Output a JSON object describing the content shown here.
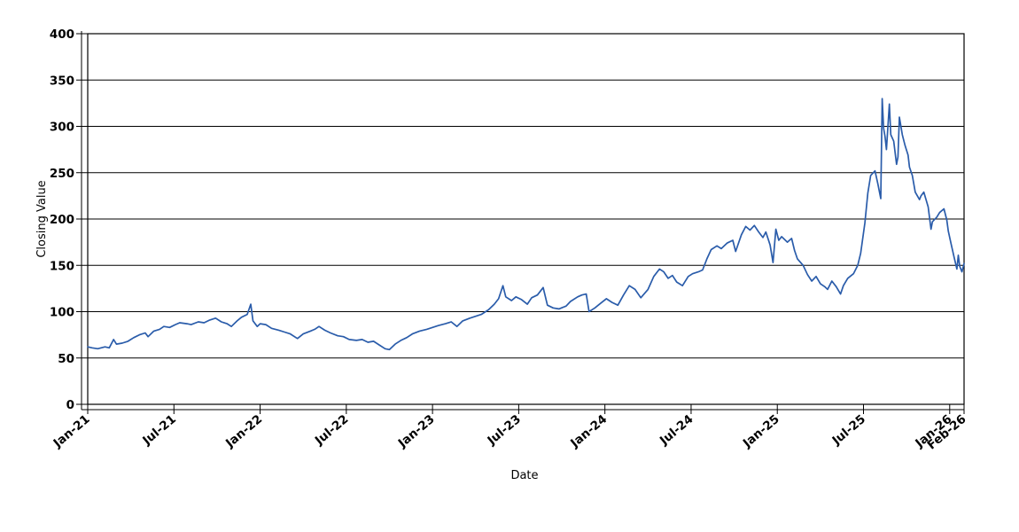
{
  "figure": {
    "kind": "time-series line chart",
    "background": "#ffffff",
    "axis_color": "#000000",
    "grid_color": "#000000"
  },
  "chart_data": {
    "type": "line",
    "title": "",
    "xlabel": "Date",
    "ylabel": "Closing Value",
    "x_unit": "months_since_2021-01 (fractional; 0 = Jan-21)",
    "xlim": [
      0,
      61
    ],
    "ylim": [
      0,
      400
    ],
    "grid": "horizontal gridlines at every 50",
    "legend": "none",
    "line_color": "#2a5caa",
    "yticks": [
      {
        "value": 0,
        "label": "0"
      },
      {
        "value": 50,
        "label": "50"
      },
      {
        "value": 100,
        "label": "100"
      },
      {
        "value": 150,
        "label": "150"
      },
      {
        "value": 200,
        "label": "200"
      },
      {
        "value": 250,
        "label": "250"
      },
      {
        "value": 300,
        "label": "300"
      },
      {
        "value": 350,
        "label": "350"
      },
      {
        "value": 400,
        "label": "400"
      }
    ],
    "xticks": [
      {
        "m": 0,
        "label": "Jan-21"
      },
      {
        "m": 6,
        "label": "Jul-21"
      },
      {
        "m": 12,
        "label": "Jan-22"
      },
      {
        "m": 18,
        "label": "Jul-22"
      },
      {
        "m": 24,
        "label": "Jan-23"
      },
      {
        "m": 30,
        "label": "Jul-23"
      },
      {
        "m": 36,
        "label": "Jan-24"
      },
      {
        "m": 42,
        "label": "Jul-24"
      },
      {
        "m": 48,
        "label": "Jan-25"
      },
      {
        "m": 54,
        "label": "Jul-25"
      },
      {
        "m": 60,
        "label": "Jan-26"
      },
      {
        "m": 61,
        "label": "Feb-26"
      }
    ],
    "series": [
      {
        "name": "Closing Value",
        "points": [
          [
            0,
            62
          ],
          [
            0.3,
            61
          ],
          [
            0.7,
            60
          ],
          [
            1.2,
            62
          ],
          [
            1.5,
            61
          ],
          [
            1.8,
            70
          ],
          [
            2.0,
            65
          ],
          [
            2.4,
            66
          ],
          [
            2.8,
            68
          ],
          [
            3.2,
            72
          ],
          [
            3.6,
            75
          ],
          [
            4.0,
            77
          ],
          [
            4.2,
            73
          ],
          [
            4.6,
            79
          ],
          [
            5.0,
            81
          ],
          [
            5.3,
            84
          ],
          [
            5.7,
            83
          ],
          [
            6.1,
            86
          ],
          [
            6.4,
            88
          ],
          [
            6.9,
            87
          ],
          [
            7.2,
            86
          ],
          [
            7.7,
            89
          ],
          [
            8.1,
            88
          ],
          [
            8.5,
            91
          ],
          [
            8.9,
            93
          ],
          [
            9.3,
            89
          ],
          [
            9.7,
            87
          ],
          [
            10.0,
            84
          ],
          [
            10.4,
            90
          ],
          [
            10.7,
            94
          ],
          [
            11.1,
            97
          ],
          [
            11.35,
            108
          ],
          [
            11.5,
            90
          ],
          [
            11.8,
            84
          ],
          [
            12.0,
            87
          ],
          [
            12.4,
            86
          ],
          [
            12.8,
            82
          ],
          [
            13.3,
            80
          ],
          [
            13.7,
            78
          ],
          [
            14.1,
            76
          ],
          [
            14.6,
            71
          ],
          [
            15.0,
            76
          ],
          [
            15.5,
            79
          ],
          [
            15.8,
            81
          ],
          [
            16.1,
            84
          ],
          [
            16.5,
            80
          ],
          [
            16.9,
            77
          ],
          [
            17.4,
            74
          ],
          [
            17.8,
            73
          ],
          [
            18.2,
            70
          ],
          [
            18.7,
            69
          ],
          [
            19.1,
            70
          ],
          [
            19.5,
            67
          ],
          [
            19.9,
            68
          ],
          [
            20.3,
            64
          ],
          [
            20.7,
            60
          ],
          [
            21.0,
            59
          ],
          [
            21.4,
            65
          ],
          [
            21.8,
            69
          ],
          [
            22.2,
            72
          ],
          [
            22.6,
            76
          ],
          [
            23.1,
            79
          ],
          [
            23.6,
            81
          ],
          [
            24.0,
            83
          ],
          [
            24.4,
            85
          ],
          [
            24.9,
            87
          ],
          [
            25.3,
            89
          ],
          [
            25.7,
            84
          ],
          [
            26.1,
            90
          ],
          [
            26.6,
            93
          ],
          [
            27.0,
            95
          ],
          [
            27.4,
            97
          ],
          [
            27.9,
            102
          ],
          [
            28.3,
            108
          ],
          [
            28.6,
            114
          ],
          [
            28.9,
            128
          ],
          [
            29.1,
            116
          ],
          [
            29.5,
            112
          ],
          [
            29.8,
            116
          ],
          [
            30.2,
            113
          ],
          [
            30.6,
            108
          ],
          [
            30.9,
            115
          ],
          [
            31.3,
            118
          ],
          [
            31.7,
            126
          ],
          [
            32.0,
            107
          ],
          [
            32.4,
            104
          ],
          [
            32.8,
            103
          ],
          [
            33.3,
            106
          ],
          [
            33.6,
            111
          ],
          [
            34.1,
            116
          ],
          [
            34.4,
            118
          ],
          [
            34.7,
            119
          ],
          [
            34.9,
            100
          ],
          [
            35.3,
            104
          ],
          [
            35.7,
            109
          ],
          [
            36.1,
            114
          ],
          [
            36.5,
            110
          ],
          [
            36.9,
            107
          ],
          [
            37.3,
            118
          ],
          [
            37.7,
            128
          ],
          [
            38.1,
            124
          ],
          [
            38.5,
            115
          ],
          [
            39.0,
            124
          ],
          [
            39.4,
            138
          ],
          [
            39.8,
            146
          ],
          [
            40.1,
            143
          ],
          [
            40.4,
            136
          ],
          [
            40.7,
            139
          ],
          [
            41.0,
            132
          ],
          [
            41.4,
            128
          ],
          [
            41.8,
            138
          ],
          [
            42.1,
            141
          ],
          [
            42.5,
            143
          ],
          [
            42.8,
            145
          ],
          [
            43.1,
            157
          ],
          [
            43.4,
            167
          ],
          [
            43.8,
            171
          ],
          [
            44.1,
            168
          ],
          [
            44.5,
            174
          ],
          [
            44.9,
            177
          ],
          [
            45.1,
            165
          ],
          [
            45.5,
            183
          ],
          [
            45.8,
            192
          ],
          [
            46.1,
            188
          ],
          [
            46.4,
            193
          ],
          [
            46.7,
            186
          ],
          [
            47.0,
            180
          ],
          [
            47.2,
            186
          ],
          [
            47.5,
            172
          ],
          [
            47.7,
            153
          ],
          [
            47.9,
            189
          ],
          [
            48.1,
            177
          ],
          [
            48.3,
            181
          ],
          [
            48.7,
            175
          ],
          [
            49.0,
            179
          ],
          [
            49.2,
            166
          ],
          [
            49.4,
            157
          ],
          [
            49.8,
            150
          ],
          [
            50.1,
            140
          ],
          [
            50.4,
            133
          ],
          [
            50.7,
            138
          ],
          [
            51.0,
            130
          ],
          [
            51.3,
            127
          ],
          [
            51.5,
            124
          ],
          [
            51.8,
            133
          ],
          [
            52.1,
            127
          ],
          [
            52.4,
            119
          ],
          [
            52.6,
            128
          ],
          [
            52.9,
            136
          ],
          [
            53.3,
            141
          ],
          [
            53.6,
            150
          ],
          [
            53.8,
            163
          ],
          [
            54.1,
            196
          ],
          [
            54.3,
            228
          ],
          [
            54.5,
            247
          ],
          [
            54.8,
            252
          ],
          [
            55.0,
            238
          ],
          [
            55.2,
            222
          ],
          [
            55.3,
            330
          ],
          [
            55.4,
            298
          ],
          [
            55.5,
            289
          ],
          [
            55.6,
            275
          ],
          [
            55.8,
            324
          ],
          [
            55.9,
            291
          ],
          [
            56.1,
            284
          ],
          [
            56.3,
            259
          ],
          [
            56.4,
            267
          ],
          [
            56.5,
            310
          ],
          [
            56.7,
            291
          ],
          [
            56.9,
            279
          ],
          [
            57.1,
            269
          ],
          [
            57.2,
            256
          ],
          [
            57.4,
            247
          ],
          [
            57.6,
            229
          ],
          [
            57.9,
            221
          ],
          [
            58.0,
            225
          ],
          [
            58.2,
            229
          ],
          [
            58.5,
            213
          ],
          [
            58.7,
            189
          ],
          [
            58.8,
            197
          ],
          [
            59.1,
            202
          ],
          [
            59.3,
            207
          ],
          [
            59.6,
            211
          ],
          [
            59.8,
            199
          ],
          [
            59.9,
            187
          ],
          [
            60.1,
            173
          ],
          [
            60.3,
            159
          ],
          [
            60.5,
            146
          ],
          [
            60.6,
            161
          ],
          [
            60.7,
            149
          ],
          [
            60.85,
            143
          ],
          [
            61,
            152
          ]
        ]
      }
    ]
  }
}
